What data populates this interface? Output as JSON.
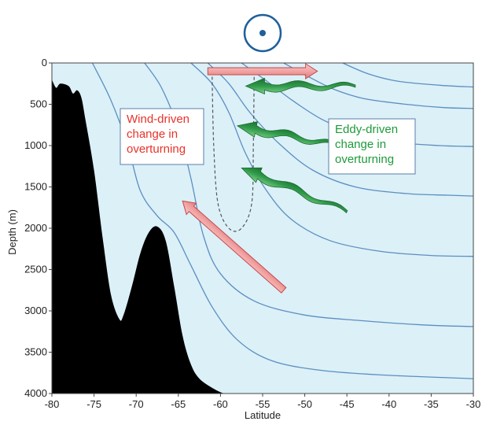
{
  "colors": {
    "ocean": "#dcf0f8",
    "isopycnal": "#5a8fc0",
    "topography": "#000000",
    "wind_text": "#e8322a",
    "eddy_text": "#1f9a3a",
    "wind_arrow": "#f2a3a3",
    "eddy_arrow": "#2f9a4a",
    "wind_symbol": "#1f5f9a"
  },
  "icons": {
    "wind_symbol": "circle-dot-icon",
    "wind_arrow": "pink-arrow-icon",
    "eddy_arrow": "wavy-green-arrow-icon"
  },
  "labels": {
    "wind_box": [
      "Wind-driven",
      "change in",
      "overturning"
    ],
    "eddy_box": [
      "Eddy-driven",
      "change in",
      "overturning"
    ]
  },
  "chart_data": {
    "type": "diagram",
    "xlabel": "Latitude",
    "ylabel": "Depth (m)",
    "xlim": [
      -80,
      -30
    ],
    "ylim": [
      4000,
      0
    ],
    "x_ticks": [
      -80,
      -75,
      -70,
      -65,
      -60,
      -55,
      -50,
      -45,
      -40,
      -35,
      -30
    ],
    "y_ticks": [
      0,
      500,
      1000,
      1500,
      2000,
      2500,
      3000,
      3500,
      4000
    ],
    "grid": false,
    "bathymetry": [
      [
        -80,
        4150
      ],
      [
        -80,
        200
      ],
      [
        -79.5,
        300
      ],
      [
        -79,
        250
      ],
      [
        -78,
        280
      ],
      [
        -77.5,
        370
      ],
      [
        -77,
        330
      ],
      [
        -76.5,
        420
      ],
      [
        -76,
        700
      ],
      [
        -75,
        1300
      ],
      [
        -74,
        2100
      ],
      [
        -73,
        2800
      ],
      [
        -72,
        3100
      ],
      [
        -71.5,
        3050
      ],
      [
        -70.5,
        2700
      ],
      [
        -69.5,
        2300
      ],
      [
        -68.5,
        2050
      ],
      [
        -67.5,
        1980
      ],
      [
        -66.5,
        2150
      ],
      [
        -65.5,
        2700
      ],
      [
        -64.5,
        3300
      ],
      [
        -63.5,
        3650
      ],
      [
        -62.5,
        3820
      ],
      [
        -61,
        3930
      ],
      [
        -59.5,
        4000
      ],
      [
        -58,
        4000
      ],
      [
        -30,
        4000
      ],
      [
        -30,
        4150
      ]
    ],
    "isopycnals": [
      [
        [
          -75.2,
          0
        ],
        [
          -73,
          450
        ],
        [
          -71,
          1000
        ],
        [
          -69.5,
          1550
        ],
        [
          -67.5,
          1850
        ],
        [
          -65.5,
          2050
        ],
        [
          -63.5,
          2450
        ],
        [
          -61,
          2950
        ],
        [
          -58,
          3350
        ],
        [
          -54,
          3600
        ],
        [
          -48,
          3720
        ],
        [
          -40,
          3780
        ],
        [
          -30,
          3820
        ]
      ],
      [
        [
          -69,
          0
        ],
        [
          -67,
          300
        ],
        [
          -65,
          800
        ],
        [
          -63.5,
          1400
        ],
        [
          -62,
          2100
        ],
        [
          -60,
          2550
        ],
        [
          -56,
          2880
        ],
        [
          -50,
          3050
        ],
        [
          -43,
          3120
        ],
        [
          -36,
          3170
        ],
        [
          -30,
          3190
        ]
      ],
      [
        [
          -63.5,
          0
        ],
        [
          -61,
          250
        ],
        [
          -59,
          600
        ],
        [
          -57,
          1100
        ],
        [
          -54.5,
          1550
        ],
        [
          -51.5,
          1900
        ],
        [
          -47,
          2150
        ],
        [
          -41,
          2280
        ],
        [
          -35,
          2330
        ],
        [
          -30,
          2340
        ]
      ],
      [
        [
          -61.5,
          0
        ],
        [
          -59,
          250
        ],
        [
          -56.5,
          600
        ],
        [
          -53,
          980
        ],
        [
          -49,
          1300
        ],
        [
          -44,
          1500
        ],
        [
          -38,
          1580
        ],
        [
          -33,
          1600
        ],
        [
          -30,
          1610
        ]
      ],
      [
        [
          -57.5,
          0
        ],
        [
          -54.5,
          220
        ],
        [
          -51.5,
          450
        ],
        [
          -48,
          680
        ],
        [
          -44,
          850
        ],
        [
          -39,
          960
        ],
        [
          -34,
          1000
        ],
        [
          -30,
          1010
        ]
      ],
      [
        [
          -52.5,
          0
        ],
        [
          -49.5,
          170
        ],
        [
          -46.5,
          320
        ],
        [
          -43,
          430
        ],
        [
          -38,
          500
        ],
        [
          -33.5,
          540
        ],
        [
          -30,
          550
        ]
      ],
      [
        [
          -45.5,
          0
        ],
        [
          -42.5,
          130
        ],
        [
          -39,
          220
        ],
        [
          -34,
          270
        ],
        [
          -30,
          290
        ]
      ]
    ],
    "overturning_cell": [
      [
        -61,
        100
      ],
      [
        -60.8,
        1000
      ],
      [
        -60.3,
        1700
      ],
      [
        -59,
        2000
      ],
      [
        -57.5,
        2000
      ],
      [
        -56.3,
        1700
      ],
      [
        -56.1,
        1000
      ],
      [
        -56,
        100
      ]
    ],
    "wind_arrows": [
      {
        "from": [
          -61.5,
          100
        ],
        "to": [
          -48.5,
          100
        ]
      },
      {
        "from": [
          -52.5,
          2750
        ],
        "to": [
          -64.5,
          1670
        ]
      }
    ],
    "eddy_arrows": [
      {
        "from": [
          -44,
          280
        ],
        "to": [
          -57,
          280
        ]
      },
      {
        "from": [
          -46,
          1000
        ],
        "to": [
          -58,
          760
        ]
      },
      {
        "from": [
          -45,
          1800
        ],
        "to": [
          -57.5,
          1270
        ]
      }
    ],
    "wind_symbol_position": [
      -55,
      -450
    ]
  }
}
